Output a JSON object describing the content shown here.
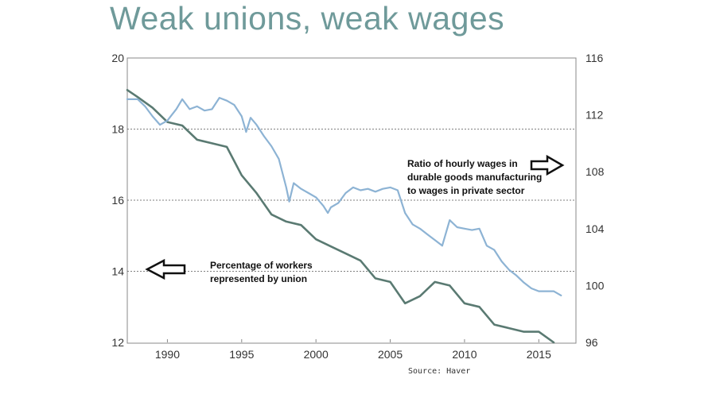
{
  "title": "Weak unions, weak wages",
  "source": "Source:  Haver",
  "colors": {
    "title": "#6f9a9a",
    "union_series": "#5a7a72",
    "wage_series": "#8db3d4",
    "gridline": "#555555",
    "frame": "#888888"
  },
  "annotations": {
    "wage_label": [
      "Ratio of hourly wages in",
      "durable goods manufacturing",
      "to wages in private sector"
    ],
    "union_label": [
      "Percentage of workers",
      "represented by union"
    ],
    "wage_arrow": "right-arrow-icon",
    "union_arrow": "left-arrow-icon"
  },
  "chart_data": {
    "type": "line",
    "title": "Weak unions, weak wages",
    "x_range": [
      1987.3,
      2017.5
    ],
    "x_ticks": [
      1990,
      1995,
      2000,
      2005,
      2010,
      2015
    ],
    "left_axis": {
      "range": [
        12,
        20
      ],
      "ticks": [
        12,
        14,
        16,
        18,
        20
      ]
    },
    "right_axis": {
      "range": [
        96,
        116
      ],
      "ticks": [
        96,
        100,
        104,
        108,
        112,
        116
      ]
    },
    "gridlines_left": [
      14,
      16,
      18
    ],
    "series": [
      {
        "name": "Percentage of workers represented by union",
        "axis": "left",
        "x": [
          1987.3,
          1988,
          1989,
          1990,
          1991,
          1992,
          1993,
          1994,
          1995,
          1996,
          1997,
          1998,
          1999,
          2000,
          2001,
          2002,
          2003,
          2004,
          2005,
          2006,
          2007,
          2008,
          2009,
          2010,
          2011,
          2012,
          2013,
          2014,
          2015,
          2016
        ],
        "values": [
          19.1,
          18.9,
          18.6,
          18.2,
          18.1,
          17.7,
          17.6,
          17.5,
          16.7,
          16.2,
          15.6,
          15.4,
          15.3,
          14.9,
          14.7,
          14.5,
          14.3,
          13.8,
          13.7,
          13.1,
          13.3,
          13.7,
          13.6,
          13.1,
          13.0,
          12.5,
          12.4,
          12.3,
          12.3,
          12.0
        ]
      },
      {
        "name": "Ratio of hourly wages in durable goods manufacturing to wages in private sector",
        "axis": "right",
        "x": [
          1987.3,
          1988,
          1988.5,
          1989,
          1989.5,
          1990,
          1990.3,
          1990.6,
          1991,
          1991.5,
          1992,
          1992.5,
          1993,
          1993.5,
          1994,
          1994.5,
          1995,
          1995.3,
          1995.6,
          1996,
          1996.5,
          1997,
          1997.5,
          1998,
          1998.2,
          1998.5,
          1999,
          1999.5,
          2000,
          2000.5,
          2000.8,
          2001,
          2001.5,
          2002,
          2002.5,
          2003,
          2003.5,
          2004,
          2004.5,
          2005,
          2005.5,
          2006,
          2006.5,
          2007,
          2007.5,
          2008,
          2008.5,
          2009,
          2009.5,
          2010,
          2010.5,
          2011,
          2011.5,
          2012,
          2012.5,
          2013,
          2013.5,
          2014,
          2014.5,
          2015,
          2015.5,
          2016,
          2016.5
        ],
        "values": [
          113.1,
          113.1,
          112.6,
          111.9,
          111.3,
          111.6,
          112.0,
          112.4,
          113.1,
          112.4,
          112.6,
          112.3,
          112.4,
          113.2,
          113.0,
          112.7,
          111.9,
          110.8,
          111.8,
          111.3,
          110.5,
          109.8,
          108.9,
          106.9,
          105.9,
          107.2,
          106.8,
          106.5,
          106.2,
          105.6,
          105.1,
          105.5,
          105.8,
          106.5,
          106.9,
          106.7,
          106.8,
          106.6,
          106.8,
          106.9,
          106.7,
          105.1,
          104.3,
          104.0,
          103.6,
          103.2,
          102.8,
          104.6,
          104.1,
          104.0,
          103.9,
          104.0,
          102.8,
          102.5,
          101.7,
          101.1,
          100.7,
          100.2,
          99.8,
          99.6,
          99.6,
          99.6,
          99.3
        ]
      }
    ]
  }
}
